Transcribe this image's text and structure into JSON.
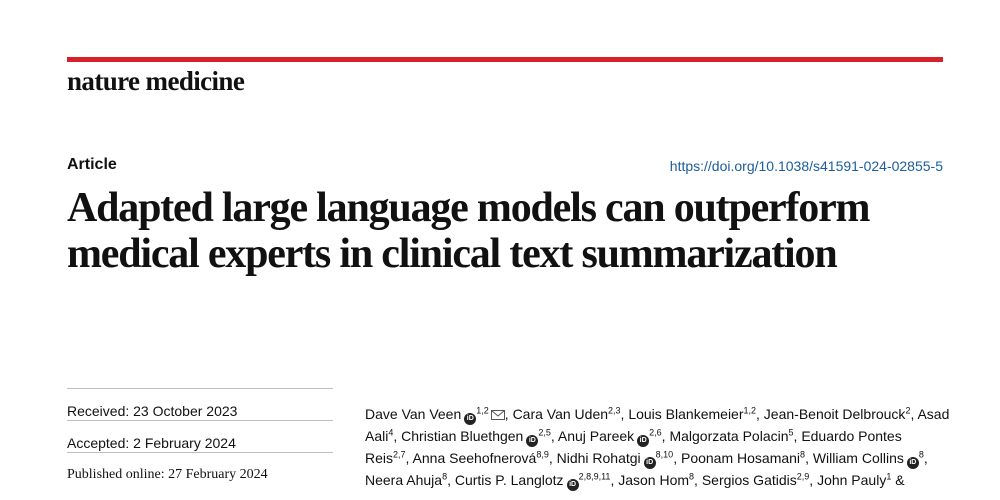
{
  "header": {
    "journal_name": "nature medicine",
    "accent_color": "#d6202a"
  },
  "article": {
    "type": "Article",
    "doi_link": "https://doi.org/10.1038/s41591-024-02855-5",
    "title": "Adapted large language models can outperform medical experts in clinical text summarization"
  },
  "dates": [
    {
      "label": "Received: 23 October 2023"
    },
    {
      "label": "Accepted: 2 February 2024"
    },
    {
      "label": "Published online: 27 February 2024"
    }
  ],
  "authors": [
    {
      "name": "Dave Van Veen",
      "sup": "1,2",
      "orcid": true,
      "email": true,
      "sep": ", "
    },
    {
      "name": "Cara Van Uden",
      "sup": "2,3",
      "orcid": false,
      "sep": ", "
    },
    {
      "name": "Louis Blankemeier",
      "sup": "1,2",
      "orcid": false,
      "sep": ", "
    },
    {
      "name": "Jean-Benoit Delbrouck",
      "sup": "2",
      "orcid": false,
      "sep": ", "
    },
    {
      "name": "Asad Aali",
      "sup": "4",
      "orcid": false,
      "sep": ", "
    },
    {
      "name": "Christian Bluethgen",
      "sup": "2,5",
      "orcid": true,
      "sep": ", "
    },
    {
      "name": "Anuj Pareek",
      "sup": "2,6",
      "orcid": true,
      "sep": ", "
    },
    {
      "name": "Malgorzata Polacin",
      "sup": "5",
      "orcid": false,
      "sep": ", "
    },
    {
      "name": "Eduardo Pontes Reis",
      "sup": "2,7",
      "orcid": false,
      "sep": ", "
    },
    {
      "name": "Anna Seehofnerová",
      "sup": "8,9",
      "orcid": false,
      "sep": ", "
    },
    {
      "name": "Nidhi Rohatgi",
      "sup": "8,10",
      "orcid": true,
      "sep": ", "
    },
    {
      "name": "Poonam Hosamani",
      "sup": "8",
      "orcid": false,
      "sep": ", "
    },
    {
      "name": "William Collins",
      "sup": "8",
      "orcid": true,
      "sep": ", "
    },
    {
      "name": "Neera Ahuja",
      "sup": "8",
      "orcid": false,
      "sep": ", "
    },
    {
      "name": "Curtis P. Langlotz",
      "sup": "2,8,9,11",
      "orcid": true,
      "sep": ", "
    },
    {
      "name": "Jason Hom",
      "sup": "8",
      "orcid": false,
      "sep": ", "
    },
    {
      "name": "Sergios Gatidis",
      "sup": "2,9",
      "orcid": false,
      "sep": ", "
    },
    {
      "name": "John Pauly",
      "sup": "1",
      "orcid": false,
      "sep": " &"
    }
  ],
  "icons": {
    "orcid": "orcid-icon",
    "email": "envelope-icon"
  },
  "orcid_glyph": "iD"
}
